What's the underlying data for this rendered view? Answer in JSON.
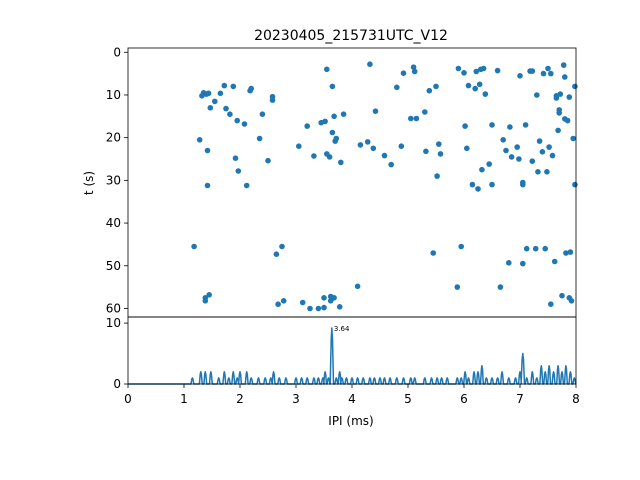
{
  "chart_data": [
    {
      "type": "scatter",
      "title": "20230405_215731UTC_V12",
      "xlabel": "",
      "ylabel": "t (s)",
      "xlim": [
        0,
        8
      ],
      "ylim": [
        62,
        -1
      ],
      "y_inverted": true,
      "yticks": [
        0,
        10,
        20,
        30,
        40,
        50,
        60
      ],
      "marker_color": "#1f77b4",
      "points": [
        [
          1.18,
          45.5
        ],
        [
          1.28,
          20.5
        ],
        [
          1.32,
          10.2
        ],
        [
          1.35,
          9.5
        ],
        [
          1.38,
          57.5
        ],
        [
          1.38,
          58.2
        ],
        [
          1.4,
          9.8
        ],
        [
          1.42,
          31.2
        ],
        [
          1.42,
          23.0
        ],
        [
          1.44,
          9.6
        ],
        [
          1.45,
          56.8
        ],
        [
          1.47,
          13.0
        ],
        [
          1.55,
          11.5
        ],
        [
          1.65,
          9.6
        ],
        [
          1.72,
          7.8
        ],
        [
          1.75,
          13.2
        ],
        [
          1.82,
          14.5
        ],
        [
          1.88,
          8.0
        ],
        [
          1.92,
          24.8
        ],
        [
          1.95,
          16.0
        ],
        [
          1.97,
          27.8
        ],
        [
          2.08,
          16.8
        ],
        [
          2.12,
          31.2
        ],
        [
          2.18,
          9.0
        ],
        [
          2.2,
          8.5
        ],
        [
          2.35,
          20.2
        ],
        [
          2.4,
          14.5
        ],
        [
          2.5,
          25.4
        ],
        [
          2.58,
          11.2
        ],
        [
          2.58,
          10.4
        ],
        [
          2.65,
          47.3
        ],
        [
          2.68,
          59.0
        ],
        [
          2.75,
          45.5
        ],
        [
          2.78,
          58.2
        ],
        [
          3.05,
          22.0
        ],
        [
          3.12,
          58.6
        ],
        [
          3.2,
          17.3
        ],
        [
          3.25,
          60.0
        ],
        [
          3.32,
          24.3
        ],
        [
          3.4,
          60.0
        ],
        [
          3.45,
          16.5
        ],
        [
          3.5,
          59.8
        ],
        [
          3.5,
          57.5
        ],
        [
          3.52,
          16.2
        ],
        [
          3.55,
          23.8
        ],
        [
          3.6,
          24.5
        ],
        [
          3.62,
          58.2
        ],
        [
          3.65,
          18.8
        ],
        [
          3.65,
          8.0
        ],
        [
          3.68,
          15.0
        ],
        [
          3.68,
          57.5
        ],
        [
          3.7,
          20.8
        ],
        [
          3.72,
          20.2
        ],
        [
          3.78,
          59.6
        ],
        [
          3.8,
          25.8
        ],
        [
          3.85,
          14.5
        ],
        [
          3.55,
          4.0
        ],
        [
          3.62,
          57.2
        ],
        [
          4.1,
          54.8
        ],
        [
          4.15,
          21.7
        ],
        [
          4.28,
          21.0
        ],
        [
          4.32,
          2.8
        ],
        [
          4.38,
          22.5
        ],
        [
          4.42,
          13.8
        ],
        [
          4.58,
          24.2
        ],
        [
          4.7,
          26.3
        ],
        [
          4.8,
          8.2
        ],
        [
          4.88,
          22.0
        ],
        [
          4.92,
          4.9
        ],
        [
          5.05,
          15.5
        ],
        [
          5.1,
          3.5
        ],
        [
          5.12,
          4.5
        ],
        [
          5.15,
          15.5
        ],
        [
          5.3,
          14.0
        ],
        [
          5.32,
          23.2
        ],
        [
          5.38,
          9.0
        ],
        [
          5.45,
          47.0
        ],
        [
          5.5,
          8.0
        ],
        [
          5.52,
          29.0
        ],
        [
          5.55,
          21.5
        ],
        [
          5.58,
          23.8
        ],
        [
          5.88,
          55.0
        ],
        [
          5.9,
          3.8
        ],
        [
          5.95,
          45.5
        ],
        [
          6.0,
          4.8
        ],
        [
          6.02,
          17.3
        ],
        [
          6.05,
          22.5
        ],
        [
          6.08,
          7.8
        ],
        [
          6.15,
          31.0
        ],
        [
          6.2,
          8.5
        ],
        [
          6.22,
          4.5
        ],
        [
          6.25,
          32.0
        ],
        [
          6.28,
          7.5
        ],
        [
          6.3,
          4.0
        ],
        [
          6.32,
          27.5
        ],
        [
          6.35,
          3.8
        ],
        [
          6.38,
          9.8
        ],
        [
          6.45,
          26.2
        ],
        [
          6.5,
          31.0
        ],
        [
          6.5,
          17.0
        ],
        [
          6.6,
          4.3
        ],
        [
          6.65,
          55.0
        ],
        [
          6.7,
          20.5
        ],
        [
          6.75,
          23.0
        ],
        [
          6.8,
          49.3
        ],
        [
          6.82,
          17.5
        ],
        [
          6.85,
          24.5
        ],
        [
          6.95,
          22.2
        ],
        [
          6.98,
          25.0
        ],
        [
          7.0,
          5.5
        ],
        [
          7.05,
          31.0
        ],
        [
          7.05,
          30.5
        ],
        [
          7.05,
          49.5
        ],
        [
          7.1,
          17.0
        ],
        [
          7.12,
          46.0
        ],
        [
          7.18,
          4.4
        ],
        [
          7.22,
          4.4
        ],
        [
          7.22,
          25.5
        ],
        [
          7.28,
          46.0
        ],
        [
          7.3,
          10.0
        ],
        [
          7.32,
          28.0
        ],
        [
          7.35,
          20.8
        ],
        [
          7.4,
          23.3
        ],
        [
          7.42,
          5.0
        ],
        [
          7.45,
          46.0
        ],
        [
          7.48,
          28.0
        ],
        [
          7.5,
          3.8
        ],
        [
          7.52,
          22.2
        ],
        [
          7.55,
          5.0
        ],
        [
          7.55,
          59.0
        ],
        [
          7.58,
          24.2
        ],
        [
          7.62,
          49.0
        ],
        [
          7.65,
          10.2
        ],
        [
          7.65,
          10.7
        ],
        [
          7.68,
          18.3
        ],
        [
          7.7,
          13.5
        ],
        [
          7.7,
          14.2
        ],
        [
          7.72,
          9.8
        ],
        [
          7.75,
          57.0
        ],
        [
          7.78,
          3.0
        ],
        [
          7.8,
          5.8
        ],
        [
          7.8,
          15.6
        ],
        [
          7.82,
          47.0
        ],
        [
          7.85,
          16.0
        ],
        [
          7.88,
          10.5
        ],
        [
          7.88,
          57.5
        ],
        [
          7.9,
          46.8
        ],
        [
          7.92,
          58.2
        ],
        [
          7.95,
          20.2
        ],
        [
          7.98,
          31.0
        ],
        [
          7.98,
          8.0
        ]
      ]
    },
    {
      "type": "line",
      "xlabel": "IPI (ms)",
      "ylabel": "",
      "xlim": [
        0,
        8
      ],
      "ylim": [
        0,
        11
      ],
      "xticks": [
        0,
        1,
        2,
        3,
        4,
        5,
        6,
        7,
        8
      ],
      "yticks": [
        0,
        10
      ],
      "line_color": "#1f77b4",
      "peak_label": "3.64",
      "peak_x": 3.64,
      "peak_y": 9.2,
      "bumps": [
        [
          1.15,
          1
        ],
        [
          1.3,
          2
        ],
        [
          1.38,
          2
        ],
        [
          1.48,
          2
        ],
        [
          1.62,
          1
        ],
        [
          1.72,
          2
        ],
        [
          1.8,
          1
        ],
        [
          1.88,
          2
        ],
        [
          1.95,
          1
        ],
        [
          2.0,
          2
        ],
        [
          2.12,
          2
        ],
        [
          2.2,
          1
        ],
        [
          2.33,
          1
        ],
        [
          2.45,
          1
        ],
        [
          2.55,
          1
        ],
        [
          2.6,
          2
        ],
        [
          2.7,
          1
        ],
        [
          2.82,
          1
        ],
        [
          3.0,
          1
        ],
        [
          3.1,
          1
        ],
        [
          3.2,
          1
        ],
        [
          3.32,
          1
        ],
        [
          3.4,
          1
        ],
        [
          3.48,
          1
        ],
        [
          3.52,
          2
        ],
        [
          3.58,
          1
        ],
        [
          3.64,
          9.2
        ],
        [
          3.72,
          1
        ],
        [
          3.78,
          2
        ],
        [
          3.82,
          1
        ],
        [
          3.9,
          1
        ],
        [
          4.0,
          1
        ],
        [
          4.1,
          1
        ],
        [
          4.2,
          1
        ],
        [
          4.32,
          1
        ],
        [
          4.4,
          1
        ],
        [
          4.5,
          1
        ],
        [
          4.58,
          1
        ],
        [
          4.68,
          1
        ],
        [
          4.8,
          1
        ],
        [
          4.92,
          1
        ],
        [
          5.05,
          1
        ],
        [
          5.12,
          1
        ],
        [
          5.3,
          1
        ],
        [
          5.42,
          1
        ],
        [
          5.52,
          1
        ],
        [
          5.6,
          1
        ],
        [
          5.7,
          1
        ],
        [
          5.88,
          1
        ],
        [
          5.95,
          1
        ],
        [
          6.02,
          2
        ],
        [
          6.08,
          1
        ],
        [
          6.18,
          2
        ],
        [
          6.25,
          2
        ],
        [
          6.32,
          3
        ],
        [
          6.4,
          1
        ],
        [
          6.5,
          1
        ],
        [
          6.6,
          1
        ],
        [
          6.68,
          2
        ],
        [
          6.8,
          1
        ],
        [
          6.92,
          1
        ],
        [
          7.0,
          2
        ],
        [
          7.05,
          5
        ],
        [
          7.12,
          1
        ],
        [
          7.22,
          2
        ],
        [
          7.3,
          1
        ],
        [
          7.38,
          3
        ],
        [
          7.45,
          2
        ],
        [
          7.52,
          3
        ],
        [
          7.6,
          2
        ],
        [
          7.68,
          3
        ],
        [
          7.75,
          2
        ],
        [
          7.82,
          3
        ],
        [
          7.9,
          2
        ],
        [
          7.97,
          1
        ]
      ]
    }
  ]
}
